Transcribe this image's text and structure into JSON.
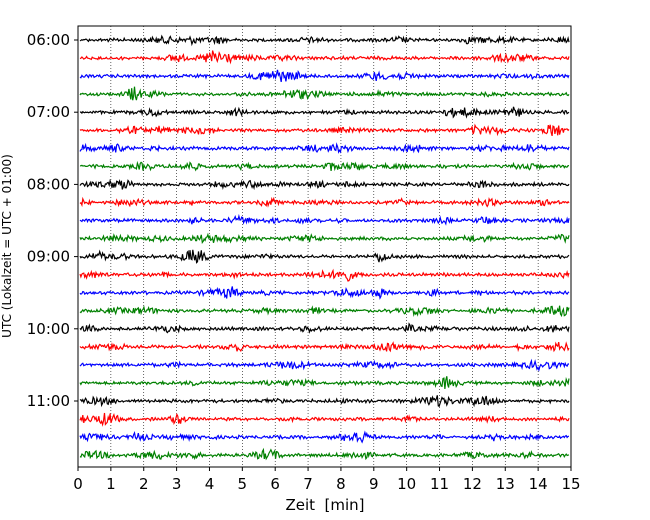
{
  "chart_data": {
    "type": "line",
    "title": "",
    "xlabel": "Zeit  [min]",
    "ylabel": "UTC (Lokalzeit = UTC + 01:00)",
    "xlim": [
      0,
      15
    ],
    "x_ticks": [
      0,
      1,
      2,
      3,
      4,
      5,
      6,
      7,
      8,
      9,
      10,
      11,
      12,
      13,
      14,
      15
    ],
    "y_tick_labels": [
      "06:00",
      "07:00",
      "08:00",
      "09:00",
      "10:00",
      "11:00"
    ],
    "row_start_times": [
      "06:00",
      "06:15",
      "06:30",
      "06:45",
      "07:00",
      "07:15",
      "07:30",
      "07:45",
      "08:00",
      "08:15",
      "08:30",
      "08:45",
      "09:00",
      "09:15",
      "09:30",
      "09:45",
      "10:00",
      "10:15",
      "10:30",
      "10:45",
      "11:00",
      "11:15",
      "11:30",
      "11:45"
    ],
    "row_colors": [
      "#000000",
      "#ff0000",
      "#0000ff",
      "#008000"
    ],
    "grid": "vertical dotted lines at each minute",
    "legend": "none",
    "trace_style": "oscillating seismogram noise trace, one 15-minute row per line"
  }
}
